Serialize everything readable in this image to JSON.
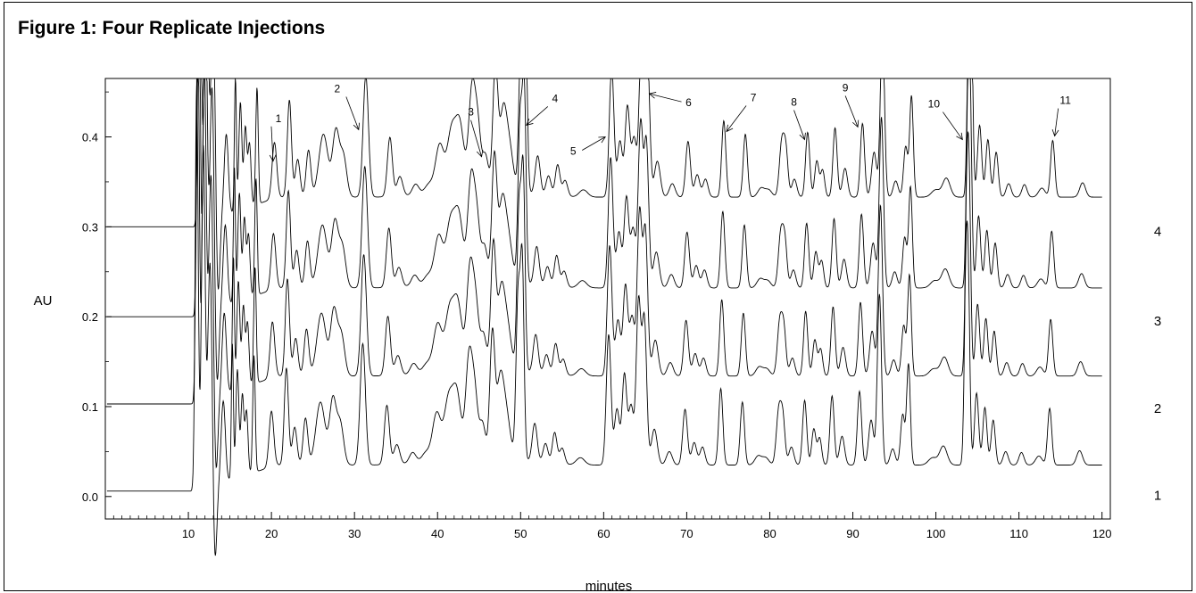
{
  "figure": {
    "title": "Figure 1:  Four Replicate Injections"
  },
  "chart_data": {
    "type": "line",
    "title": "Figure 1:  Four Replicate Injections",
    "xlabel": "minutes",
    "ylabel": "AU",
    "xlim": [
      0,
      121
    ],
    "ylim": [
      -0.025,
      0.465
    ],
    "xticks": [
      10,
      20,
      30,
      40,
      50,
      60,
      70,
      80,
      90,
      100,
      110,
      120
    ],
    "yticks": [
      "0.0",
      "0.1",
      "0.2",
      "0.3",
      "0.4"
    ],
    "grid": false,
    "series": [
      {
        "name": "1",
        "baseline": 0.006,
        "end_level": 0.035
      },
      {
        "name": "2",
        "baseline": 0.103,
        "end_level": 0.134
      },
      {
        "name": "3",
        "baseline": 0.2,
        "end_level": 0.232
      },
      {
        "name": "4",
        "baseline": 0.3,
        "end_level": 0.333
      }
    ],
    "peak_annotations": [
      {
        "label": "1",
        "x": 20.2,
        "y": 0.373
      },
      {
        "label": "2",
        "x": 30.5,
        "y": 0.408
      },
      {
        "label": "3",
        "x": 45.3,
        "y": 0.378
      },
      {
        "label": "4",
        "x": 50.7,
        "y": 0.413
      },
      {
        "label": "5",
        "x": 60.2,
        "y": 0.4
      },
      {
        "label": "6",
        "x": 65.5,
        "y": 0.448
      },
      {
        "label": "7",
        "x": 74.8,
        "y": 0.406
      },
      {
        "label": "8",
        "x": 84.2,
        "y": 0.397
      },
      {
        "label": "9",
        "x": 90.6,
        "y": 0.411
      },
      {
        "label": "10",
        "x": 103.2,
        "y": 0.397
      },
      {
        "label": "11",
        "x": 114.3,
        "y": 0.401
      }
    ]
  }
}
